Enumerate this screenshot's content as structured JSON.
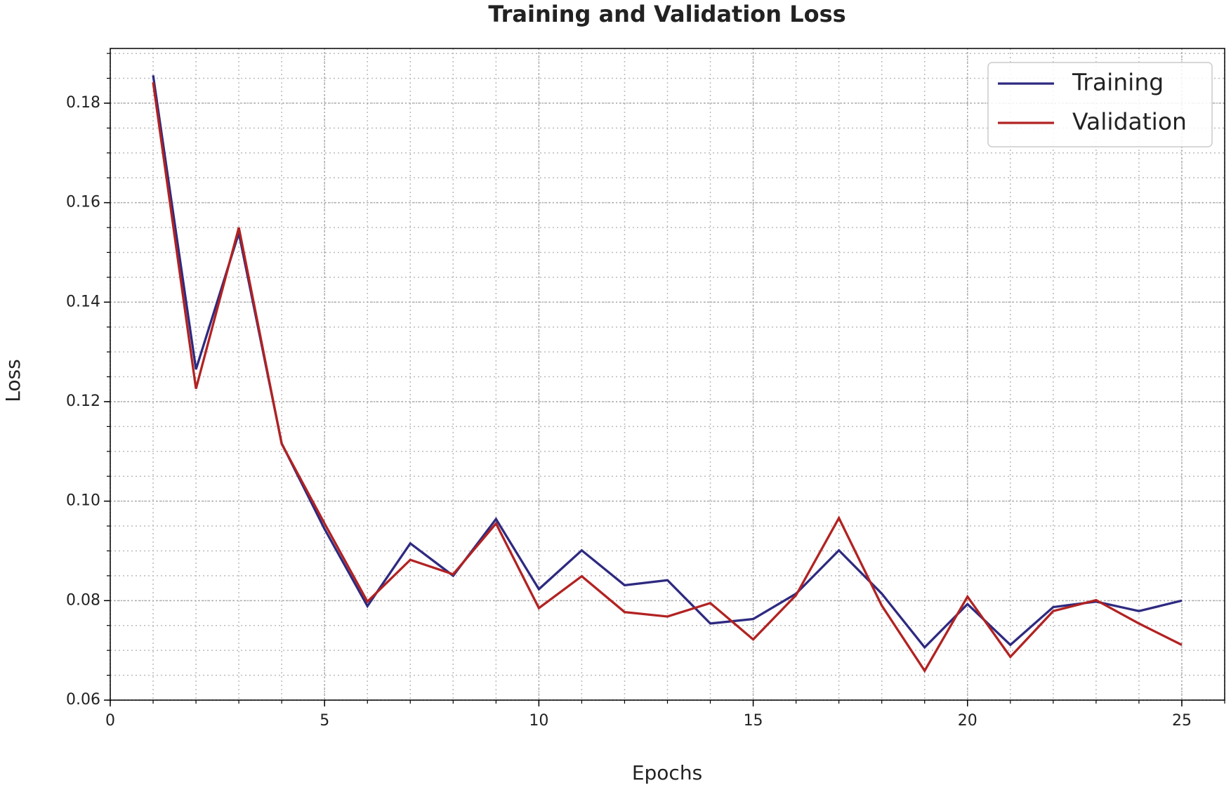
{
  "chart_data": {
    "type": "line",
    "title": "Training and Validation Loss",
    "x_label": "Epochs",
    "y_label": "Loss",
    "x": [
      1,
      2,
      3,
      4,
      5,
      6,
      7,
      8,
      9,
      10,
      11,
      12,
      13,
      14,
      15,
      16,
      17,
      18,
      19,
      20,
      21,
      22,
      23,
      24,
      25
    ],
    "series": [
      {
        "name": "Training",
        "color": "#2e2a80",
        "values": [
          0.1856,
          0.1265,
          0.1539,
          0.1116,
          0.0944,
          0.0789,
          0.0915,
          0.085,
          0.0964,
          0.0823,
          0.0901,
          0.0831,
          0.0841,
          0.0754,
          0.0763,
          0.0814,
          0.0901,
          0.0814,
          0.0706,
          0.0793,
          0.0711,
          0.0787,
          0.0798,
          0.0779,
          0.08
        ]
      },
      {
        "name": "Validation",
        "color": "#b22222",
        "values": [
          0.1842,
          0.1226,
          0.155,
          0.1115,
          0.0955,
          0.0798,
          0.0882,
          0.0853,
          0.0955,
          0.0785,
          0.0849,
          0.0777,
          0.0768,
          0.0795,
          0.0722,
          0.0811,
          0.0966,
          0.079,
          0.0659,
          0.0808,
          0.0687,
          0.0779,
          0.0801,
          0.0754,
          0.0711
        ]
      }
    ],
    "xlim": [
      0,
      26
    ],
    "xticks": [
      0,
      5,
      10,
      15,
      20,
      25
    ],
    "ylim": [
      0.06,
      0.191
    ],
    "yticks": [
      0.06,
      0.08,
      {
        "value": 0.1,
        "label": "0.10"
      },
      0.12,
      0.14,
      0.16,
      0.18
    ],
    "grid": true,
    "minor_grid": true,
    "legend": "upper right"
  }
}
